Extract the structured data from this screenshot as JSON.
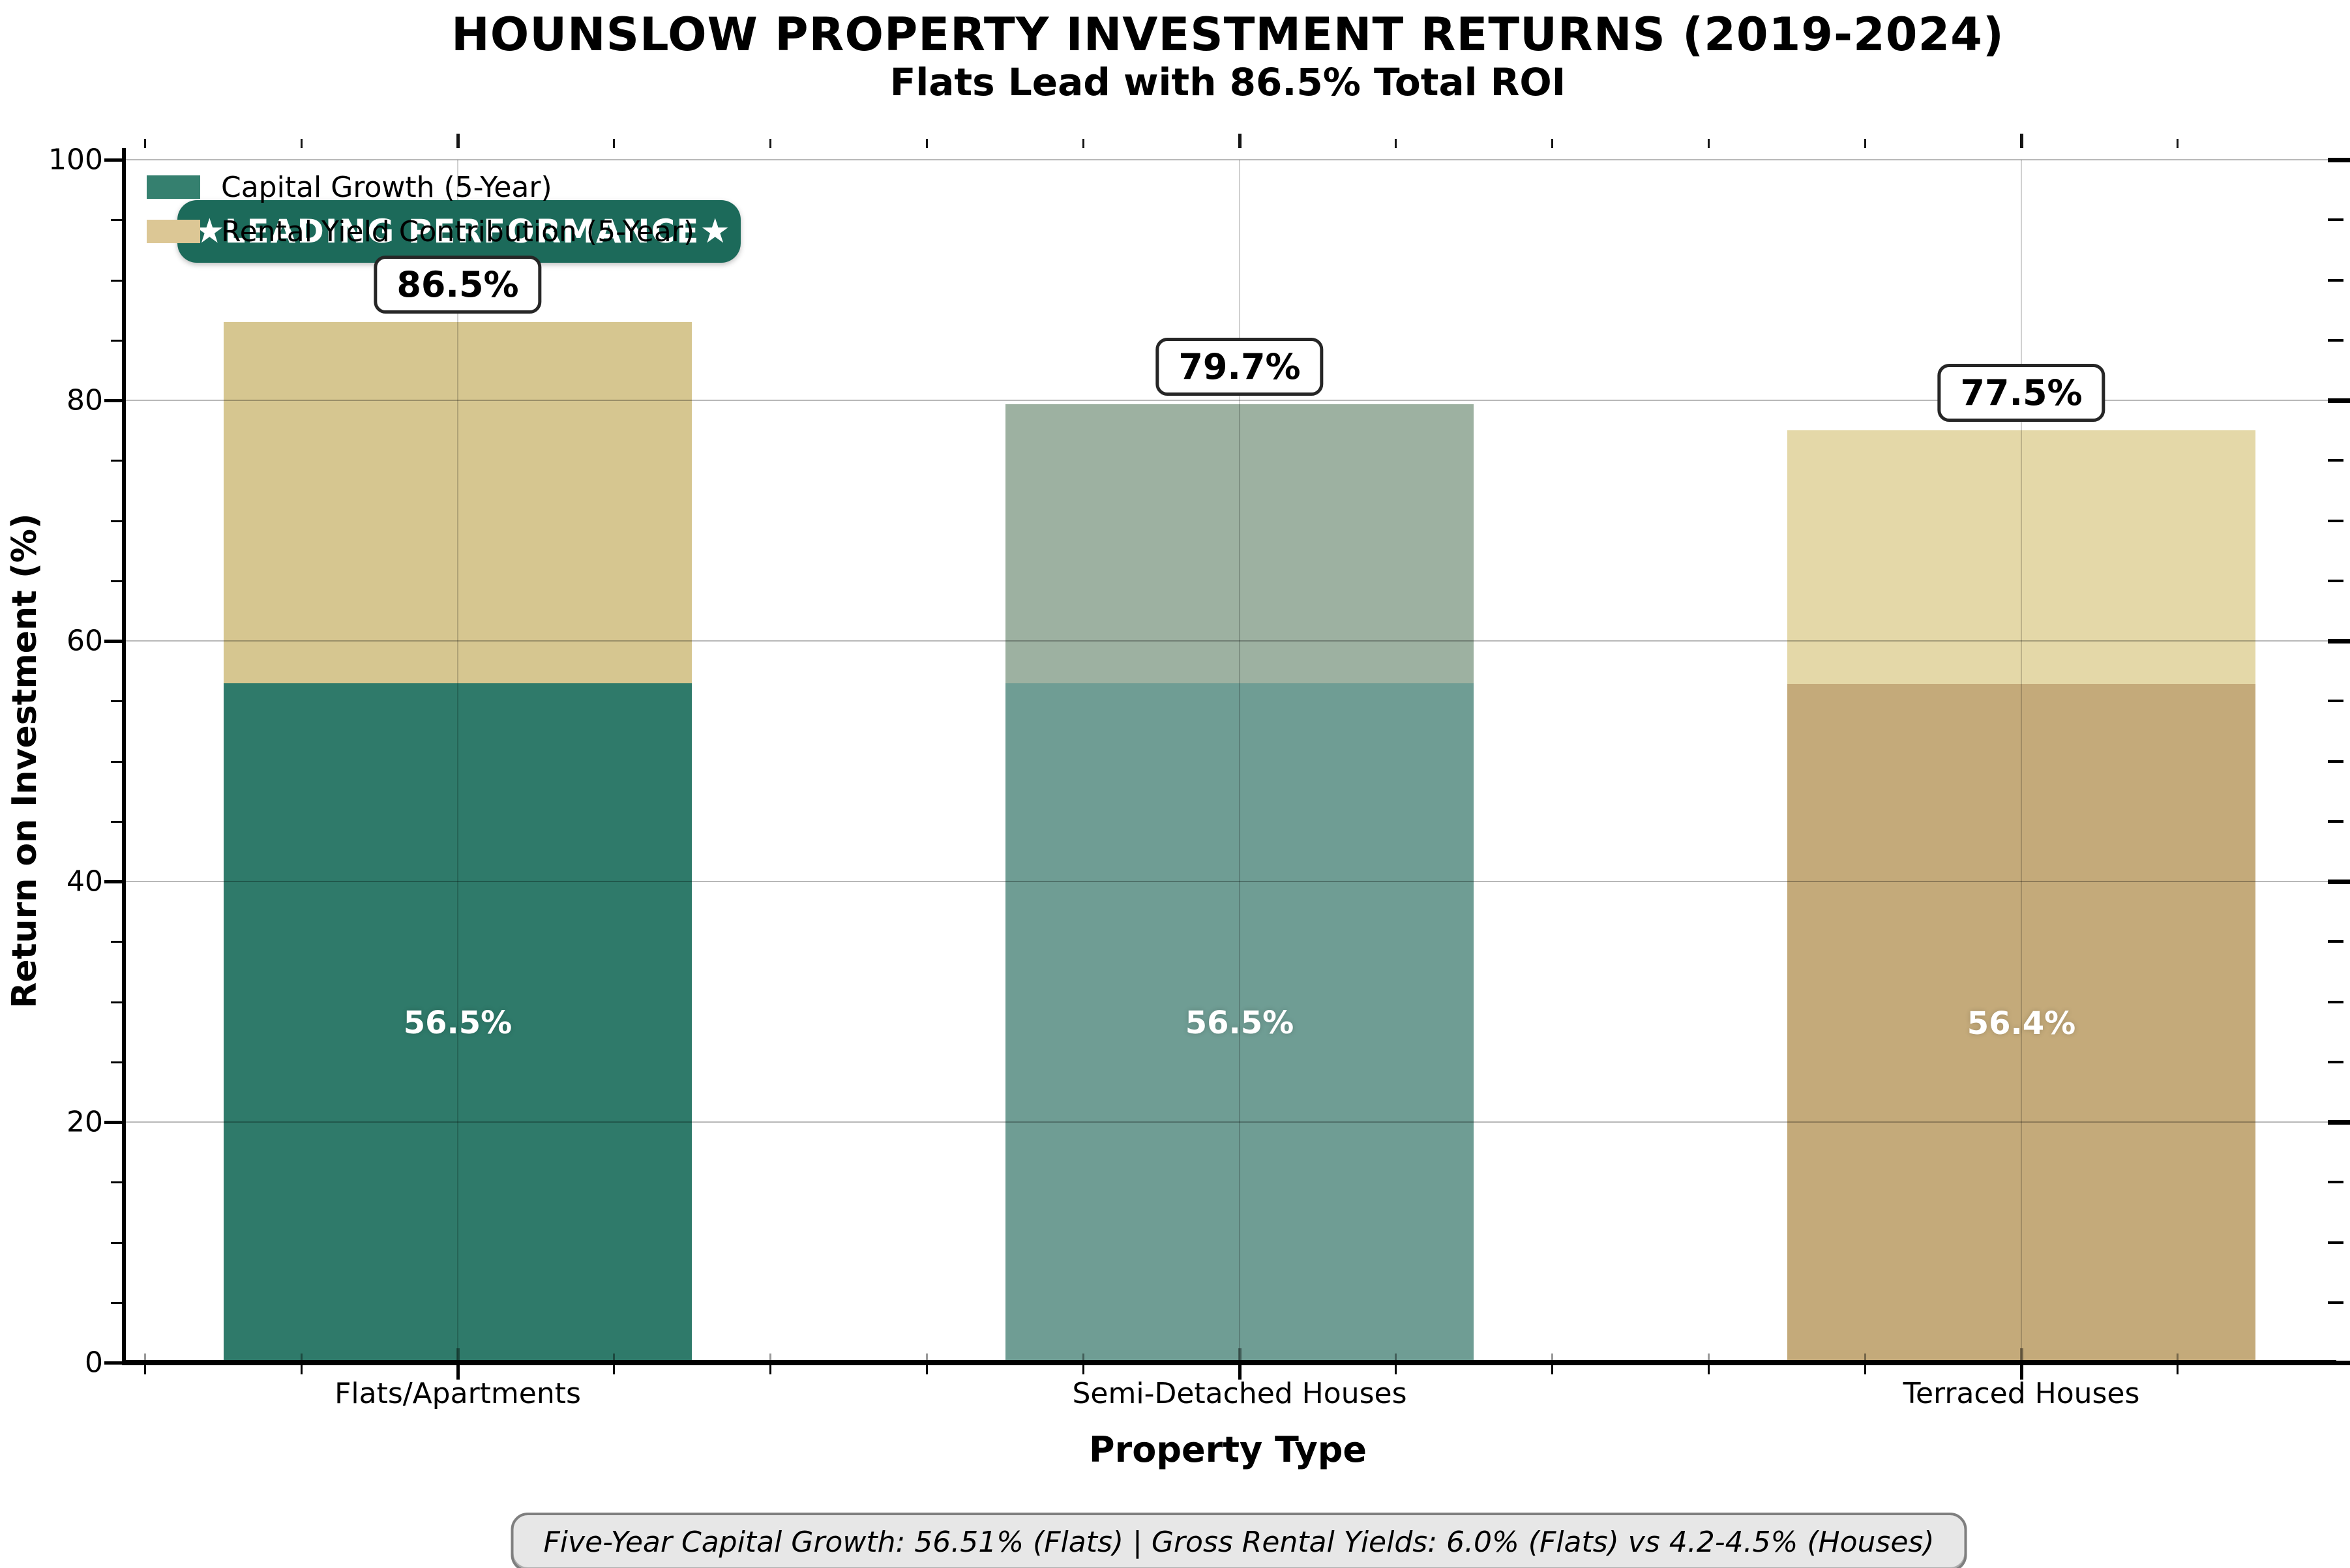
{
  "title": "HOUNSLOW PROPERTY INVESTMENT RETURNS (2019-2024)",
  "subtitle": "Flats Lead with 86.5% Total ROI",
  "badge": {
    "star": "★",
    "label": "LEADING PERFORMANCE",
    "bg_color": "#1C6A5A",
    "text_color": "#FFFFFF"
  },
  "footer": {
    "text": "Five-Year Capital Growth: 56.51% (Flats) | Gross Rental Yields: 6.0% (Flats) vs 4.2-4.5% (Houses)"
  },
  "chart_data": {
    "type": "bar",
    "stacked": true,
    "title": "HOUNSLOW PROPERTY INVESTMENT RETURNS (2019-2024)",
    "subtitle": "Flats Lead with 86.5% Total ROI",
    "categories": [
      "Flats/Apartments",
      "Semi-Detached Houses",
      "Terraced Houses"
    ],
    "series": [
      {
        "name": "Capital Growth (5-Year)",
        "values": [
          56.5,
          56.5,
          56.4
        ],
        "segment_labels": [
          "56.5%",
          "56.5%",
          "56.4%"
        ],
        "colors": [
          "#2F7A6A",
          "#6F9D94",
          "#C4AA7A"
        ]
      },
      {
        "name": "Rental Yield Contribution (5-Year)",
        "values": [
          30.0,
          23.2,
          21.1
        ],
        "segment_labels": [
          "",
          "",
          ""
        ],
        "colors": [
          "#D6C690",
          "#9DB1A1",
          "#E4D8A8"
        ]
      }
    ],
    "totals": [
      86.5,
      79.7,
      77.5
    ],
    "total_labels": [
      "86.5%",
      "79.7%",
      "77.5%"
    ],
    "xlabel": "Property Type",
    "ylabel": "Return on Investment (%)",
    "ylim": [
      0,
      100
    ],
    "yticks": [
      0,
      20,
      40,
      60,
      80,
      100
    ],
    "y_minor_step": 5,
    "grid": true,
    "legend_position": "upper left",
    "legend_swatch_colors": [
      "#35806F",
      "#DCC795"
    ]
  }
}
